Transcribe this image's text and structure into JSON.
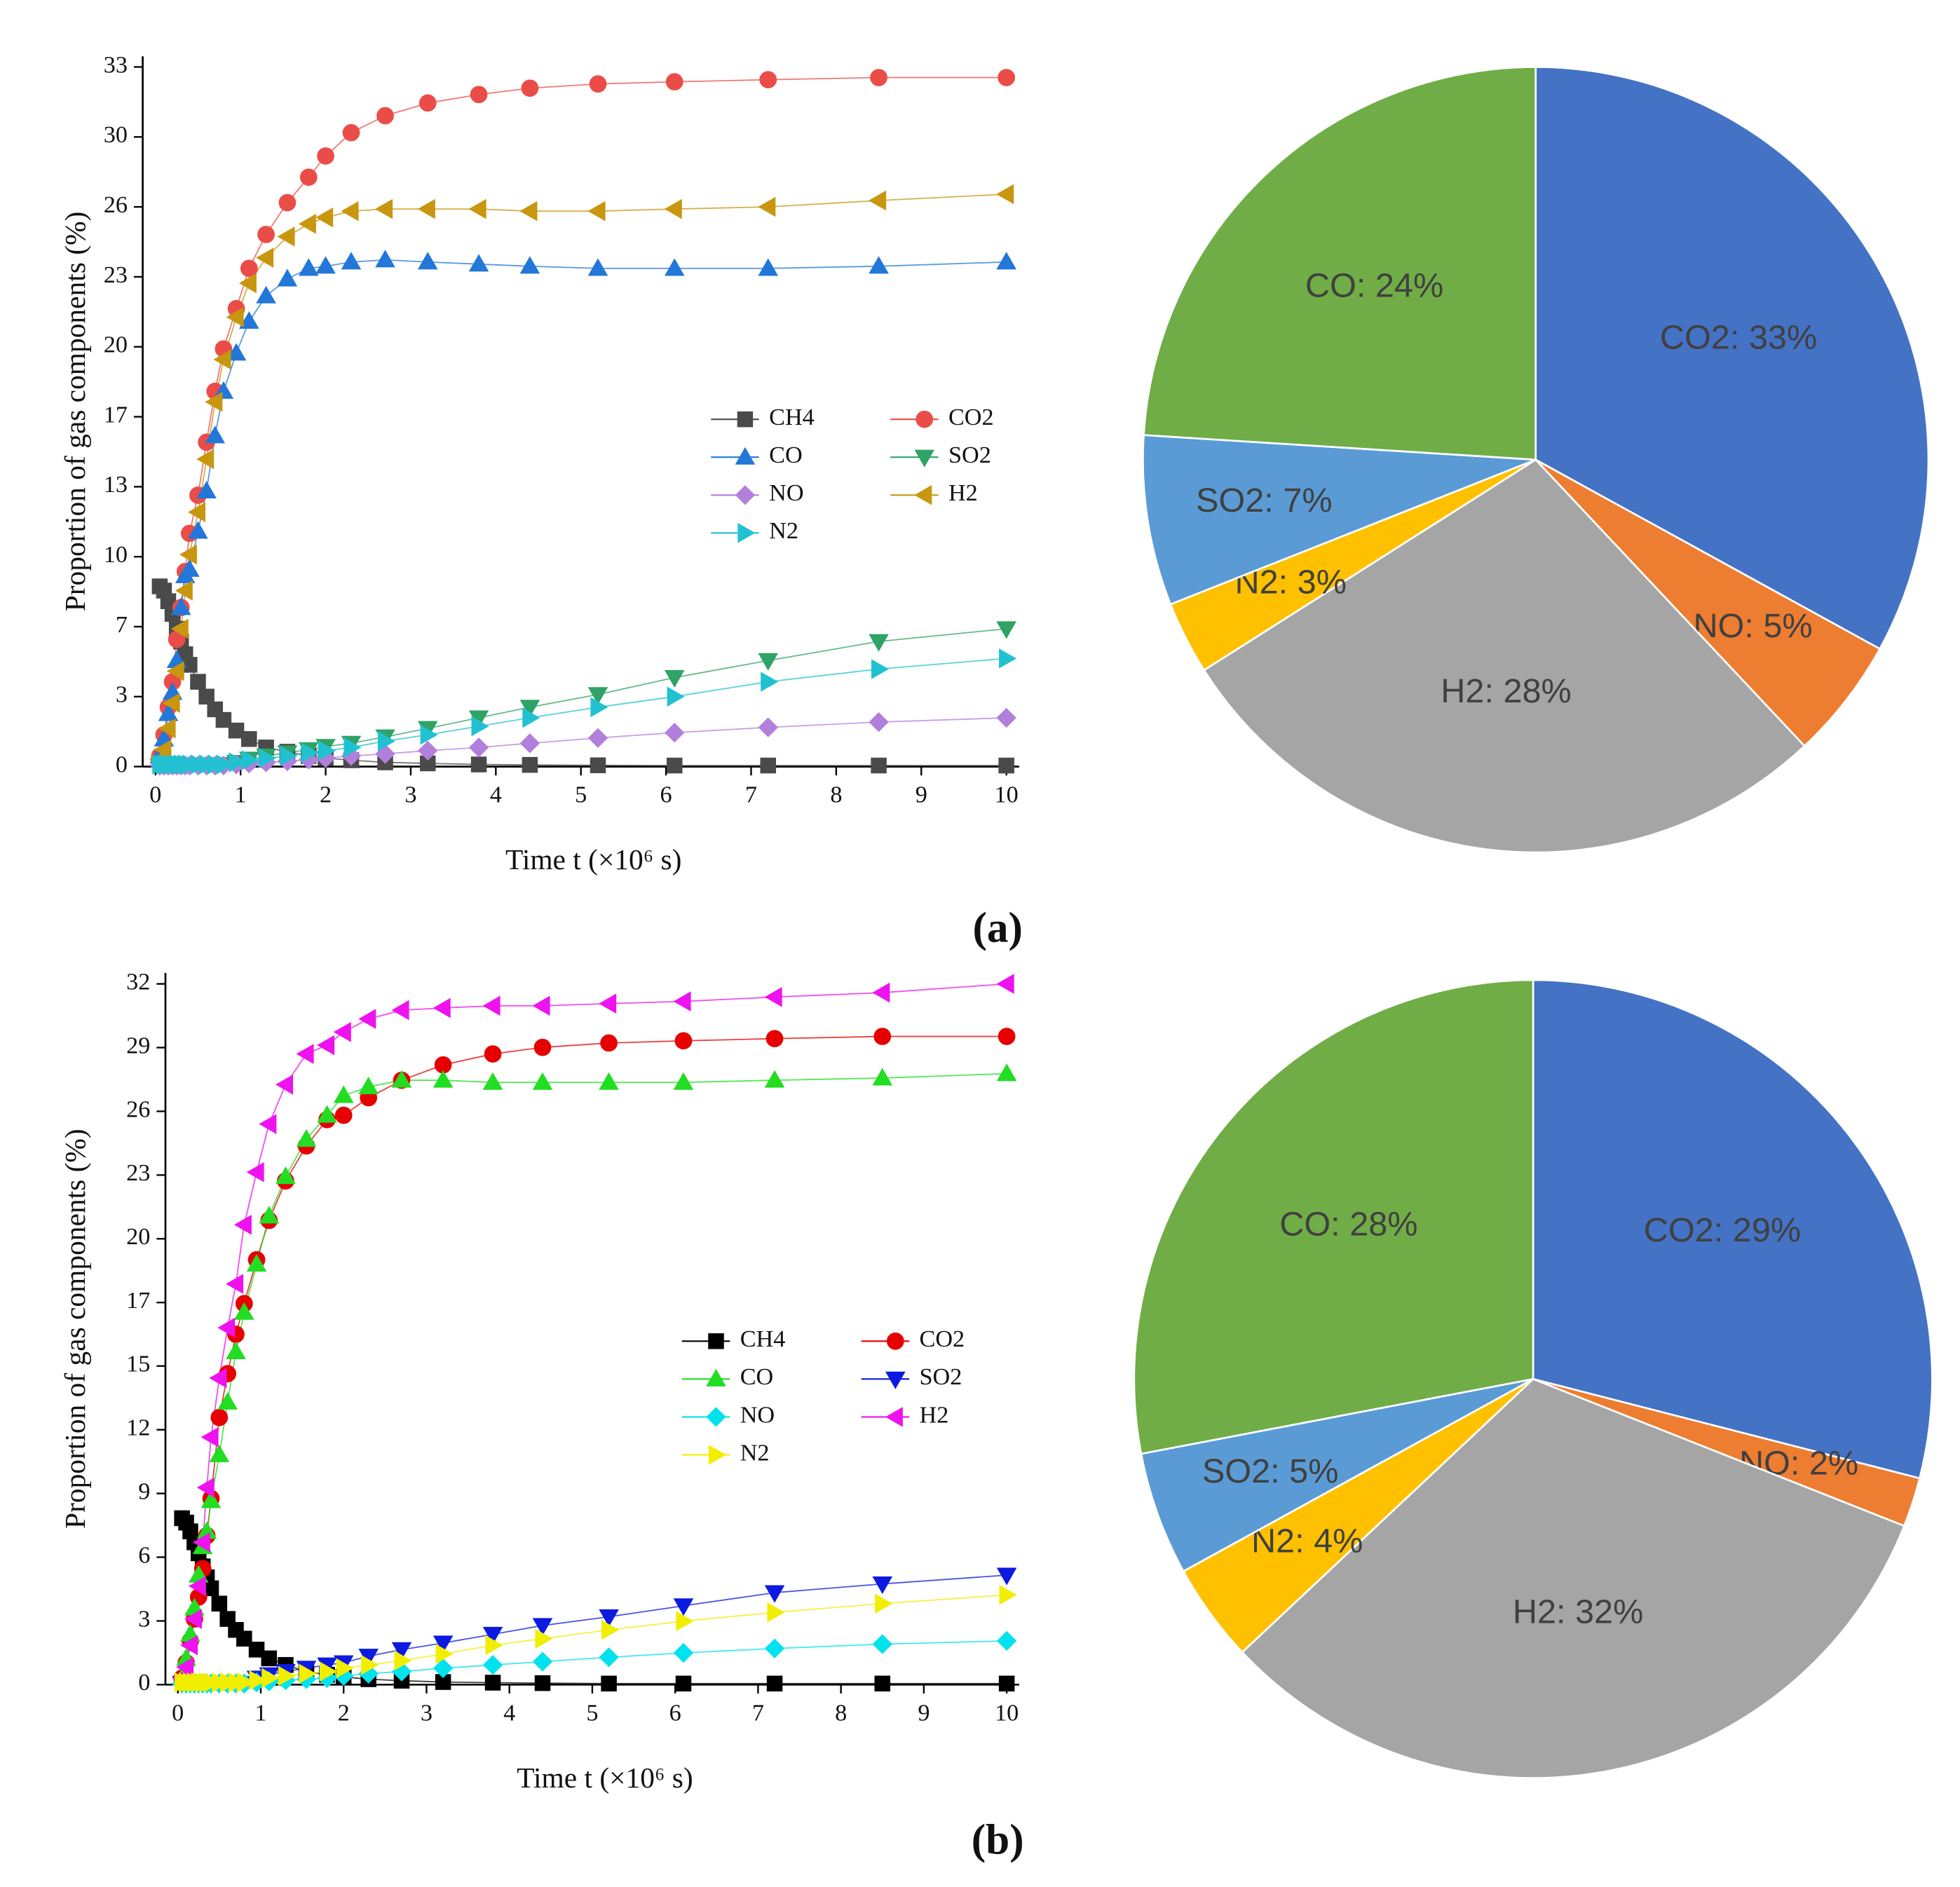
{
  "panel_labels": [
    "(a)",
    "(b)"
  ],
  "chart_data": [
    {
      "type": "line",
      "ylabel": "Proportion of gas components (%)",
      "xlabel": "Time t (×10⁶ s)",
      "xlim": [
        -0.15,
        10.15
      ],
      "xticks": [
        0,
        1,
        2,
        3,
        4,
        5,
        6,
        7,
        8,
        9,
        10
      ],
      "ylim": [
        0,
        33.5
      ],
      "yticks": [
        0,
        {
          "value": 3.3,
          "label": "3"
        },
        {
          "value": 6.6,
          "label": "7"
        },
        {
          "value": 9.9,
          "label": "10"
        },
        {
          "value": 13.2,
          "label": "13"
        },
        {
          "value": 16.5,
          "label": "17"
        },
        {
          "value": 19.8,
          "label": "20"
        },
        {
          "value": 23.1,
          "label": "23"
        },
        {
          "value": 26.4,
          "label": "26"
        },
        {
          "value": 29.7,
          "label": "30"
        },
        33
      ],
      "legend": "right",
      "x": [
        0.05,
        0.1,
        0.15,
        0.2,
        0.25,
        0.3,
        0.35,
        0.4,
        0.5,
        0.6,
        0.7,
        0.8,
        0.95,
        1.1,
        1.3,
        1.55,
        1.8,
        2.0,
        2.3,
        2.7,
        3.2,
        3.8,
        4.4,
        5.2,
        6.1,
        7.2,
        8.5,
        10
      ],
      "series": [
        {
          "name": "CH4",
          "color": "#4a4a4a",
          "marker": "square",
          "values": [
            8.5,
            8.3,
            7.8,
            7.2,
            6.5,
            5.9,
            5.3,
            4.8,
            4.0,
            3.3,
            2.7,
            2.2,
            1.7,
            1.3,
            0.9,
            0.7,
            0.5,
            0.4,
            0.3,
            0.2,
            0.15,
            0.1,
            0.08,
            0.06,
            0.05,
            0.05,
            0.05,
            0.05
          ]
        },
        {
          "name": "CO2",
          "color": "#ea4d48",
          "marker": "circle",
          "values": [
            0.5,
            1.5,
            2.8,
            4.0,
            6.0,
            7.5,
            9.2,
            11.0,
            12.8,
            15.3,
            17.7,
            19.7,
            21.6,
            23.5,
            25.1,
            26.6,
            27.8,
            28.8,
            29.9,
            30.7,
            31.3,
            31.7,
            32.0,
            32.2,
            32.3,
            32.4,
            32.5,
            32.5
          ]
        },
        {
          "name": "CO",
          "color": "#2277d8",
          "marker": "tri-up",
          "values": [
            0.5,
            1.3,
            2.5,
            3.5,
            5.0,
            7.5,
            9.0,
            9.3,
            11.1,
            13.0,
            15.6,
            17.7,
            19.5,
            21.0,
            22.2,
            23.0,
            23.5,
            23.6,
            23.8,
            23.9,
            23.8,
            23.7,
            23.6,
            23.5,
            23.5,
            23.5,
            23.6,
            23.8
          ]
        },
        {
          "name": "SO2",
          "color": "#2fa366",
          "marker": "tri-down",
          "values": [
            0.05,
            0.05,
            0.05,
            0.05,
            0.05,
            0.05,
            0.05,
            0.05,
            0.05,
            0.06,
            0.08,
            0.1,
            0.2,
            0.35,
            0.5,
            0.65,
            0.8,
            0.95,
            1.1,
            1.4,
            1.8,
            2.3,
            2.8,
            3.4,
            4.2,
            5.0,
            5.9,
            6.5
          ]
        },
        {
          "name": "NO",
          "color": "#b17fdc",
          "marker": "diamond",
          "values": [
            0.05,
            0.05,
            0.05,
            0.05,
            0.05,
            0.05,
            0.05,
            0.05,
            0.05,
            0.05,
            0.05,
            0.05,
            0.1,
            0.15,
            0.2,
            0.25,
            0.33,
            0.4,
            0.5,
            0.6,
            0.75,
            0.9,
            1.1,
            1.35,
            1.6,
            1.85,
            2.1,
            2.3
          ]
        },
        {
          "name": "H2",
          "color": "#c8960f",
          "marker": "tri-left",
          "values": [
            0.3,
            0.8,
            1.8,
            3.0,
            4.5,
            6.5,
            8.3,
            10.0,
            12.0,
            14.5,
            17.2,
            19.2,
            21.2,
            22.8,
            24.0,
            25.0,
            25.6,
            25.9,
            26.2,
            26.3,
            26.3,
            26.3,
            26.2,
            26.2,
            26.3,
            26.4,
            26.7,
            27.0
          ]
        },
        {
          "name": "N2",
          "color": "#22c1d2",
          "marker": "tri-right",
          "values": [
            0.1,
            0.1,
            0.1,
            0.1,
            0.1,
            0.1,
            0.1,
            0.1,
            0.1,
            0.1,
            0.1,
            0.1,
            0.2,
            0.3,
            0.4,
            0.5,
            0.65,
            0.75,
            0.9,
            1.2,
            1.5,
            1.9,
            2.3,
            2.8,
            3.3,
            4.0,
            4.6,
            5.1
          ]
        }
      ]
    },
    {
      "type": "pie",
      "categories": [
        "CO2",
        "NO",
        "H2",
        "N2",
        "SO2",
        "CO"
      ],
      "values": [
        33,
        5,
        28,
        3,
        7,
        24
      ],
      "value_labels": [
        "CO2: 33%",
        "NO: 5%",
        "H2: 28%",
        "N2: 3%",
        "SO2: 7%",
        "CO: 24%"
      ],
      "colors": [
        "#4472c4",
        "#ed7d31",
        "#a5a5a5",
        "#ffc000",
        "#5b9bd5",
        "#70ad47"
      ]
    },
    {
      "type": "line",
      "ylabel": "Proportion of gas components (%)",
      "xlabel": "Time t (×10⁶ s)",
      "xlim": [
        -0.15,
        10.15
      ],
      "xticks": [
        0,
        1,
        2,
        3,
        4,
        5,
        6,
        7,
        8,
        9,
        10
      ],
      "ylim": [
        0,
        32.5
      ],
      "yticks": [
        0,
        {
          "value": 2.91,
          "label": "3"
        },
        {
          "value": 5.82,
          "label": "6"
        },
        {
          "value": 8.73,
          "label": "9"
        },
        {
          "value": 11.64,
          "label": "12"
        },
        {
          "value": 14.55,
          "label": "15"
        },
        {
          "value": 17.45,
          "label": "17"
        },
        {
          "value": 20.36,
          "label": "20"
        },
        {
          "value": 23.27,
          "label": "23"
        },
        {
          "value": 26.18,
          "label": "26"
        },
        {
          "value": 29.09,
          "label": "29"
        },
        32
      ],
      "legend": "right",
      "x": [
        0.05,
        0.1,
        0.15,
        0.2,
        0.25,
        0.3,
        0.35,
        0.4,
        0.5,
        0.6,
        0.7,
        0.8,
        0.95,
        1.1,
        1.3,
        1.55,
        1.8,
        2.0,
        2.3,
        2.7,
        3.2,
        3.8,
        4.4,
        5.2,
        6.1,
        7.2,
        8.5,
        10
      ],
      "series": [
        {
          "name": "CH4",
          "color": "#000000",
          "marker": "square",
          "values": [
            7.6,
            7.4,
            7.0,
            6.5,
            6.0,
            5.4,
            4.9,
            4.4,
            3.7,
            3.0,
            2.5,
            2.1,
            1.6,
            1.2,
            0.9,
            0.6,
            0.45,
            0.35,
            0.25,
            0.18,
            0.12,
            0.09,
            0.07,
            0.05,
            0.05,
            0.05,
            0.05,
            0.05
          ]
        },
        {
          "name": "CO2",
          "color": "#e60000",
          "marker": "circle",
          "values": [
            0.3,
            1.0,
            2.0,
            3.0,
            4.0,
            5.3,
            6.8,
            8.5,
            12.2,
            14.2,
            16.0,
            17.4,
            19.4,
            21.2,
            23.0,
            24.6,
            25.8,
            26.0,
            26.8,
            27.6,
            28.3,
            28.8,
            29.1,
            29.3,
            29.4,
            29.5,
            29.6,
            29.6
          ]
        },
        {
          "name": "CO",
          "color": "#22dd22",
          "marker": "tri-up",
          "values": [
            0.3,
            1.2,
            2.3,
            3.5,
            5.0,
            6.3,
            7.0,
            8.4,
            10.5,
            12.9,
            15.2,
            17.0,
            19.2,
            21.4,
            23.2,
            24.9,
            26.0,
            26.9,
            27.3,
            27.6,
            27.6,
            27.5,
            27.5,
            27.5,
            27.5,
            27.6,
            27.7,
            27.9
          ]
        },
        {
          "name": "SO2",
          "color": "#0c1ae0",
          "marker": "tri-down",
          "values": [
            0.05,
            0.05,
            0.05,
            0.05,
            0.05,
            0.05,
            0.05,
            0.05,
            0.05,
            0.05,
            0.05,
            0.05,
            0.3,
            0.45,
            0.6,
            0.75,
            0.9,
            1.0,
            1.3,
            1.6,
            1.9,
            2.3,
            2.7,
            3.1,
            3.6,
            4.2,
            4.6,
            5.0
          ]
        },
        {
          "name": "NO",
          "color": "#00e2ee",
          "marker": "diamond",
          "values": [
            0.05,
            0.05,
            0.05,
            0.05,
            0.05,
            0.05,
            0.05,
            0.05,
            0.05,
            0.05,
            0.05,
            0.05,
            0.1,
            0.15,
            0.2,
            0.25,
            0.3,
            0.4,
            0.5,
            0.6,
            0.75,
            0.9,
            1.05,
            1.25,
            1.45,
            1.65,
            1.85,
            2.0
          ]
        },
        {
          "name": "H2",
          "color": "#ee12ee",
          "marker": "tri-left",
          "values": [
            0.3,
            0.8,
            1.8,
            3.0,
            4.5,
            6.5,
            9.0,
            11.3,
            14.0,
            16.3,
            18.3,
            21.0,
            23.4,
            25.6,
            27.4,
            28.8,
            29.2,
            29.8,
            30.4,
            30.8,
            30.9,
            31.0,
            31.0,
            31.1,
            31.2,
            31.4,
            31.6,
            32.0
          ]
        },
        {
          "name": "N2",
          "color": "#f2ee00",
          "marker": "tri-right",
          "values": [
            0.1,
            0.1,
            0.1,
            0.1,
            0.1,
            0.1,
            0.1,
            0.1,
            0.1,
            0.1,
            0.1,
            0.1,
            0.2,
            0.3,
            0.4,
            0.5,
            0.6,
            0.75,
            0.9,
            1.1,
            1.4,
            1.8,
            2.1,
            2.5,
            2.9,
            3.3,
            3.7,
            4.1
          ]
        }
      ]
    },
    {
      "type": "pie",
      "categories": [
        "CO2",
        "NO",
        "H2",
        "N2",
        "SO2",
        "CO"
      ],
      "values": [
        29,
        2,
        32,
        4,
        5,
        28
      ],
      "value_labels": [
        "CO2: 29%",
        "NO: 2%",
        "H2: 32%",
        "N2: 4%",
        "SO2: 5%",
        "CO: 28%"
      ],
      "colors": [
        "#4472c4",
        "#ed7d31",
        "#a5a5a5",
        "#ffc000",
        "#5b9bd5",
        "#70ad47"
      ]
    }
  ]
}
